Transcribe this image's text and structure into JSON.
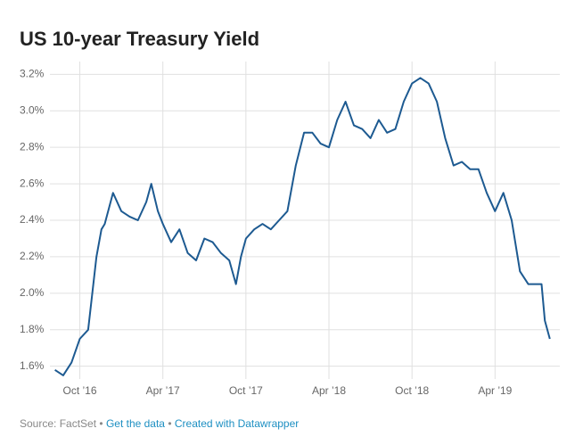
{
  "chart_data": {
    "type": "line",
    "title": "US 10-year Treasury Yield",
    "x": [
      2016.6,
      2016.65,
      2016.7,
      2016.75,
      2016.8,
      2016.85,
      2016.88,
      2016.9,
      2016.95,
      2017.0,
      2017.05,
      2017.1,
      2017.15,
      2017.18,
      2017.22,
      2017.25,
      2017.3,
      2017.35,
      2017.4,
      2017.45,
      2017.5,
      2017.55,
      2017.6,
      2017.65,
      2017.69,
      2017.72,
      2017.75,
      2017.8,
      2017.85,
      2017.9,
      2017.95,
      2018.0,
      2018.05,
      2018.1,
      2018.15,
      2018.2,
      2018.25,
      2018.3,
      2018.35,
      2018.4,
      2018.45,
      2018.5,
      2018.55,
      2018.6,
      2018.65,
      2018.7,
      2018.75,
      2018.8,
      2018.85,
      2018.9,
      2018.95,
      2019.0,
      2019.05,
      2019.1,
      2019.15,
      2019.2,
      2019.25,
      2019.3,
      2019.35,
      2019.4,
      2019.45,
      2019.5,
      2019.53,
      2019.55,
      2019.58
    ],
    "series": [
      {
        "name": "US 10-year Treasury Yield",
        "color": "#1d5a91",
        "values": [
          1.58,
          1.55,
          1.62,
          1.75,
          1.8,
          2.2,
          2.35,
          2.38,
          2.55,
          2.45,
          2.42,
          2.4,
          2.5,
          2.6,
          2.45,
          2.38,
          2.28,
          2.35,
          2.22,
          2.18,
          2.3,
          2.28,
          2.22,
          2.18,
          2.05,
          2.2,
          2.3,
          2.35,
          2.38,
          2.35,
          2.4,
          2.45,
          2.7,
          2.88,
          2.88,
          2.82,
          2.8,
          2.95,
          3.05,
          2.92,
          2.9,
          2.85,
          2.95,
          2.88,
          2.9,
          3.05,
          3.15,
          3.18,
          3.15,
          3.05,
          2.85,
          2.7,
          2.72,
          2.68,
          2.68,
          2.55,
          2.45,
          2.55,
          2.4,
          2.12,
          2.05,
          2.05,
          2.05,
          1.85,
          1.75
        ]
      }
    ],
    "xlim": [
      2016.57,
      2019.64
    ],
    "xticks": [
      {
        "value": 2016.75,
        "label": "Oct ’16"
      },
      {
        "value": 2017.25,
        "label": "Apr ’17"
      },
      {
        "value": 2017.75,
        "label": "Oct ’17"
      },
      {
        "value": 2018.25,
        "label": "Apr ’18"
      },
      {
        "value": 2018.75,
        "label": "Oct ’18"
      },
      {
        "value": 2019.25,
        "label": "Apr ’19"
      }
    ],
    "ylim": [
      1.53,
      3.27
    ],
    "yticks": [
      {
        "value": 1.6,
        "label": "1.6%"
      },
      {
        "value": 1.8,
        "label": "1.8%"
      },
      {
        "value": 2.0,
        "label": "2.0%"
      },
      {
        "value": 2.2,
        "label": "2.2%"
      },
      {
        "value": 2.4,
        "label": "2.4%"
      },
      {
        "value": 2.6,
        "label": "2.6%"
      },
      {
        "value": 2.8,
        "label": "2.8%"
      },
      {
        "value": 3.0,
        "label": "3.0%"
      },
      {
        "value": 3.2,
        "label": "3.2%"
      }
    ],
    "grid": true
  },
  "footer": {
    "source": "Source: FactSet",
    "separator": "•",
    "links": [
      "Get the data",
      "Created with Datawrapper"
    ]
  }
}
